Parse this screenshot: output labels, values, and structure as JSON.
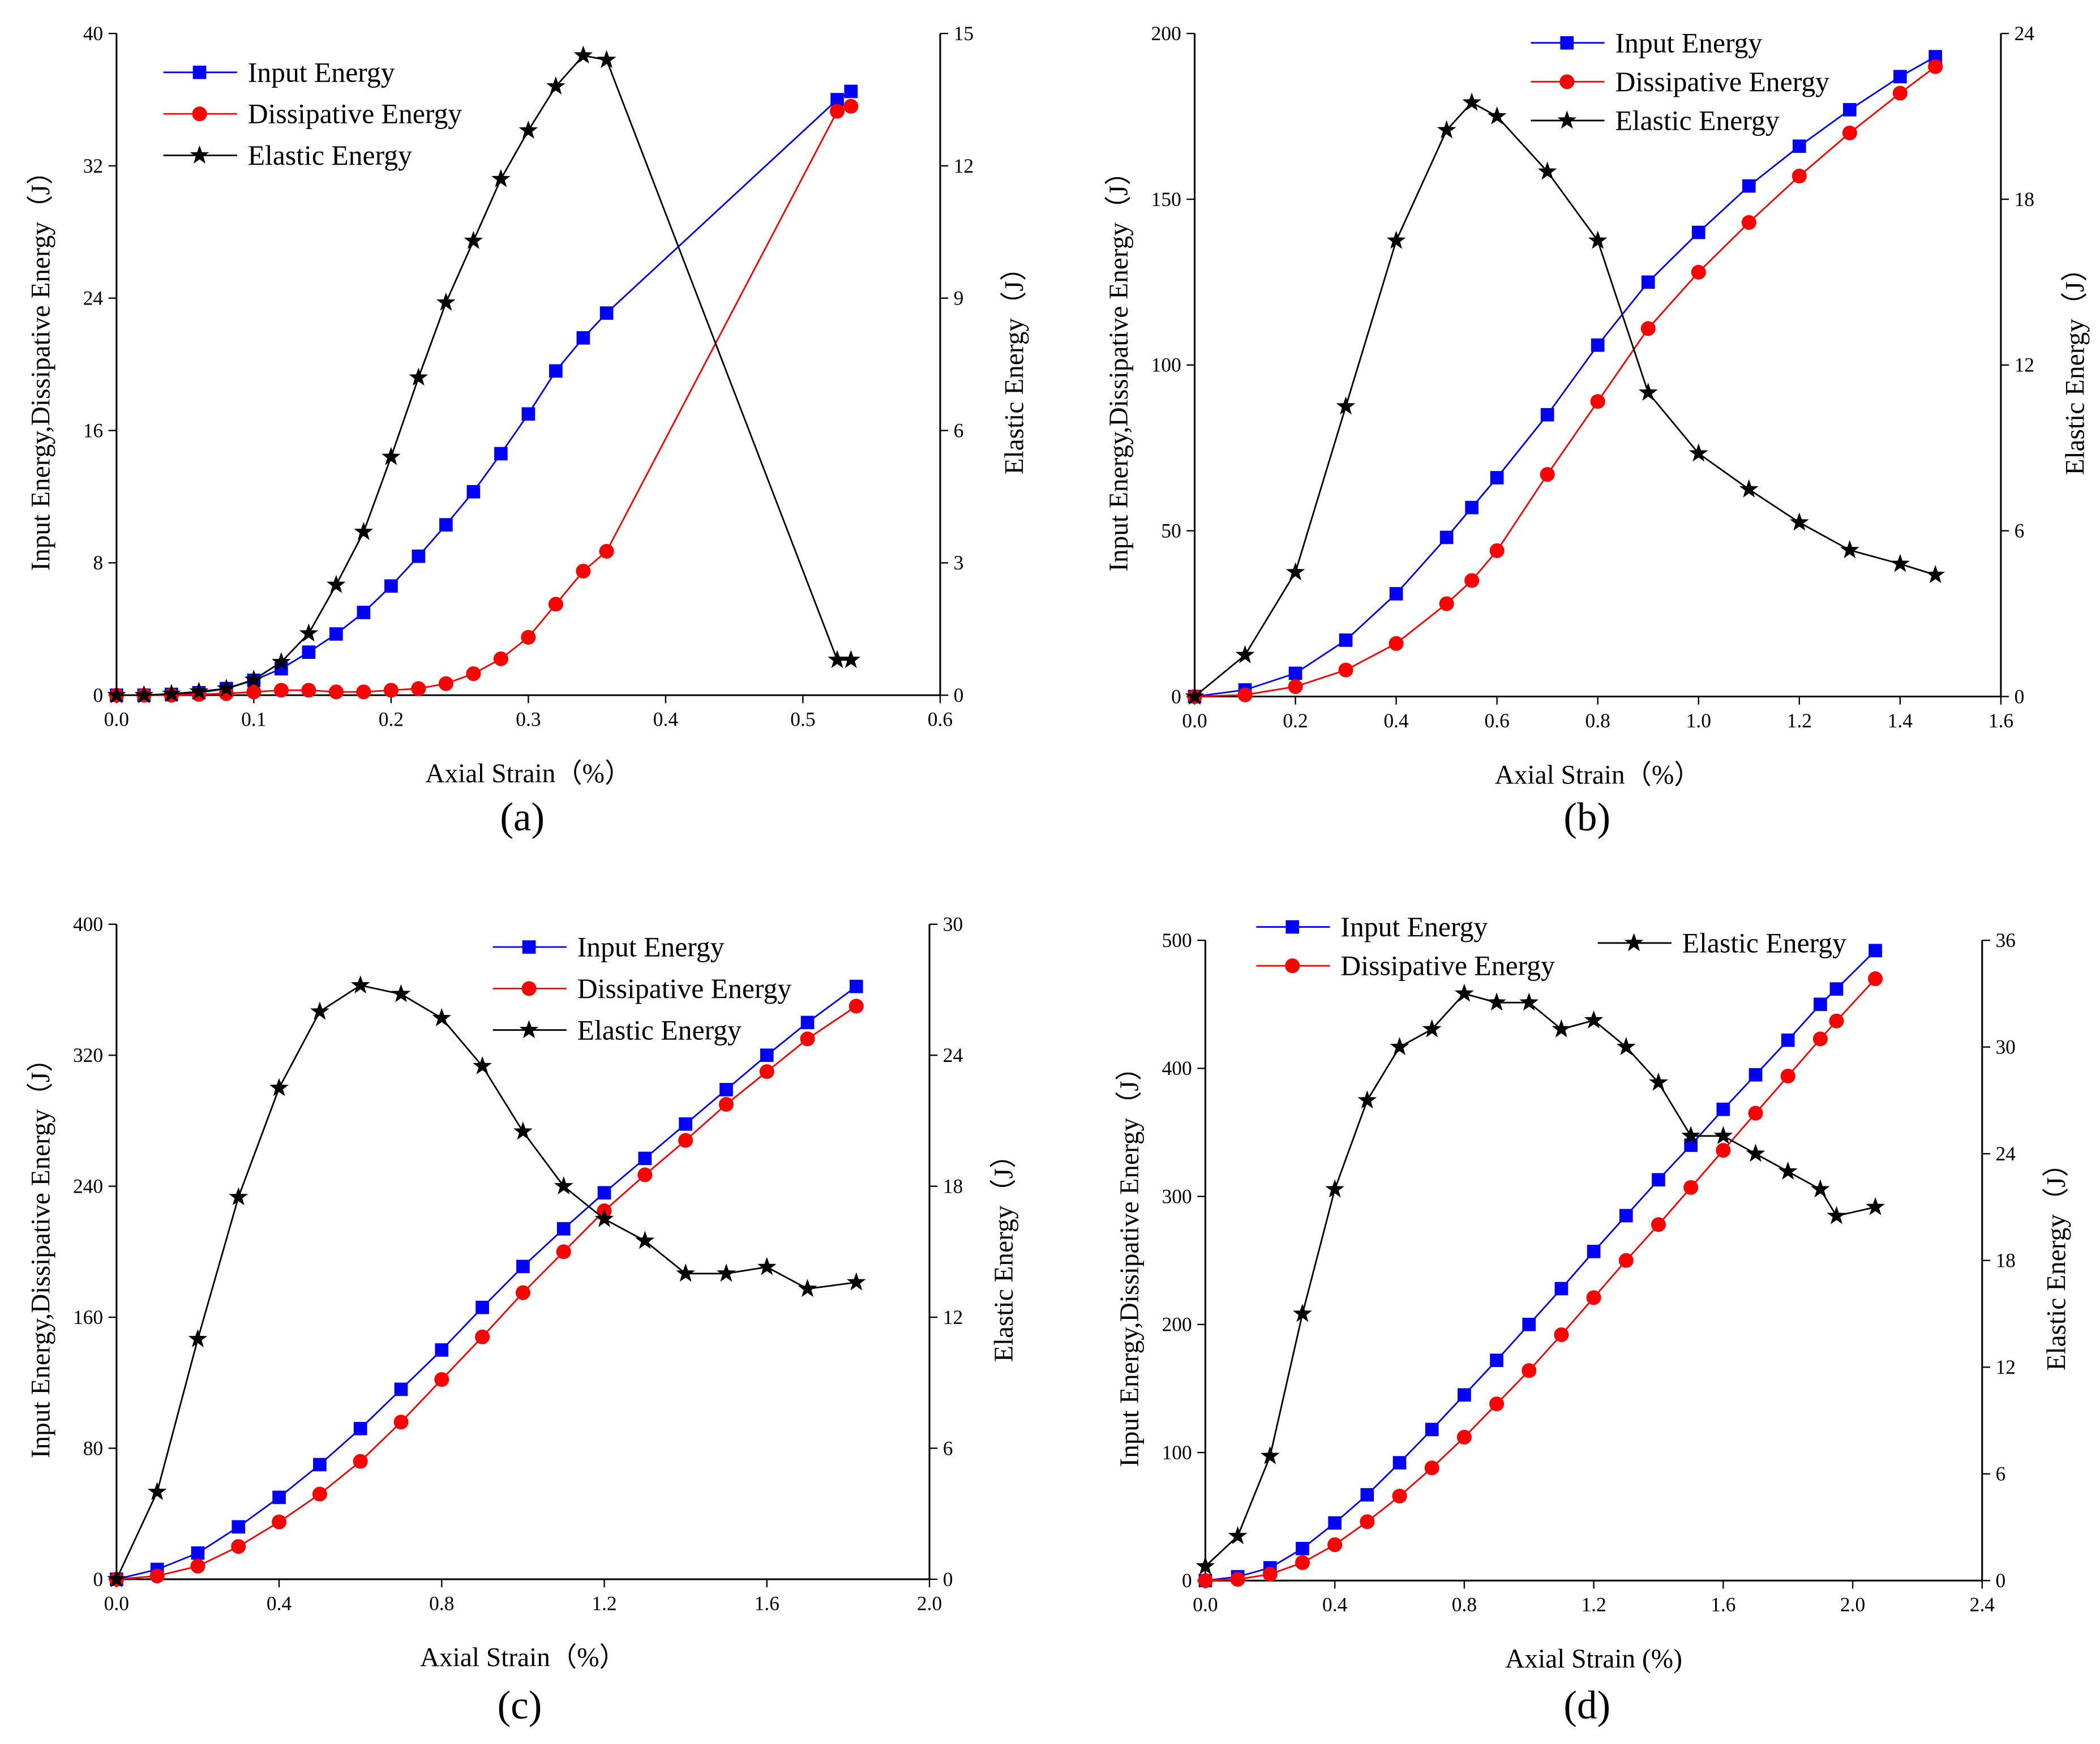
{
  "colors": {
    "input": "#0000ff",
    "dissipative": "#ff0000",
    "elastic": "#000000"
  },
  "chart_data": [
    {
      "type": "line",
      "panel": "(a)",
      "xlabel": "Axial Strain（%）",
      "ylabel": "Input Energy,Dissipative Energy（J）",
      "y2label": "Elastic Energy（J）",
      "xlim": [
        0,
        0.6
      ],
      "ylim": [
        0,
        40
      ],
      "y2lim": [
        0,
        15
      ],
      "xticks": [
        "0.0",
        "0.1",
        "0.2",
        "0.3",
        "0.4",
        "0.5",
        "0.6"
      ],
      "yticks": [
        "0",
        "8",
        "16",
        "24",
        "32",
        "40"
      ],
      "y2ticks": [
        "0",
        "3",
        "6",
        "9",
        "12",
        "15"
      ],
      "legend_position": "top-left",
      "x": [
        0,
        0.02,
        0.04,
        0.06,
        0.08,
        0.1,
        0.12,
        0.14,
        0.16,
        0.18,
        0.2,
        0.22,
        0.24,
        0.26,
        0.28,
        0.3,
        0.32,
        0.34,
        0.357,
        0.525,
        0.535
      ],
      "series": [
        {
          "name": "Input Energy",
          "axis": "left",
          "values": [
            0,
            0,
            0.05,
            0.15,
            0.4,
            0.9,
            1.6,
            2.6,
            3.7,
            5,
            6.6,
            8.4,
            10.3,
            12.3,
            14.6,
            17,
            19.6,
            21.6,
            23.1,
            36,
            36.5
          ]
        },
        {
          "name": "Dissipative Energy",
          "axis": "left",
          "values": [
            0,
            0,
            0,
            0.05,
            0.1,
            0.2,
            0.3,
            0.3,
            0.2,
            0.2,
            0.3,
            0.4,
            0.7,
            1.3,
            2.2,
            3.5,
            5.5,
            7.5,
            8.7,
            35.3,
            35.6
          ]
        },
        {
          "name": "Elastic Energy",
          "axis": "right",
          "values": [
            0,
            0,
            0.03,
            0.08,
            0.15,
            0.35,
            0.75,
            1.4,
            2.5,
            3.7,
            5.4,
            7.2,
            8.9,
            10.3,
            11.7,
            12.8,
            13.8,
            14.5,
            14.4,
            0.8,
            0.8
          ]
        }
      ]
    },
    {
      "type": "line",
      "panel": "(b)",
      "xlabel": "Axial Strain（%）",
      "ylabel": "Input Energy,Dissipative Energy（J）",
      "y2label": "Elastic Energy（J）",
      "xlim": [
        0,
        1.6
      ],
      "ylim": [
        0,
        200
      ],
      "y2lim": [
        0,
        24
      ],
      "xticks": [
        "0.0",
        "0.2",
        "0.4",
        "0.6",
        "0.8",
        "1.0",
        "1.2",
        "1.4",
        "1.6"
      ],
      "yticks": [
        "0",
        "50",
        "100",
        "150",
        "200"
      ],
      "y2ticks": [
        "0",
        "6",
        "12",
        "18",
        "24"
      ],
      "legend_position": "top-right",
      "x": [
        0,
        0.1,
        0.2,
        0.3,
        0.4,
        0.5,
        0.55,
        0.6,
        0.7,
        0.8,
        0.9,
        1.0,
        1.1,
        1.2,
        1.3,
        1.4,
        1.47
      ],
      "series": [
        {
          "name": "Input Energy",
          "axis": "left",
          "values": [
            0,
            2,
            7,
            17,
            31,
            48,
            57,
            66,
            85,
            106,
            125,
            140,
            154,
            166,
            177,
            187,
            193
          ]
        },
        {
          "name": "Dissipative Energy",
          "axis": "left",
          "values": [
            0,
            0.5,
            3,
            8,
            16,
            28,
            35,
            44,
            67,
            89,
            111,
            128,
            143,
            157,
            170,
            182,
            190
          ]
        },
        {
          "name": "Elastic Energy",
          "axis": "right",
          "values": [
            0,
            1.5,
            4.5,
            10.5,
            16.5,
            20.5,
            21.5,
            21,
            19,
            16.5,
            11,
            8.8,
            7.5,
            6.3,
            5.3,
            4.8,
            4.4
          ]
        }
      ]
    },
    {
      "type": "line",
      "panel": "(c)",
      "xlabel": "Axial Strain（%）",
      "ylabel": "Input Energy,Dissipative Energy（J）",
      "y2label": "Elastic Energy（J）",
      "xlim": [
        0,
        2.0
      ],
      "ylim": [
        0,
        400
      ],
      "y2lim": [
        0,
        30
      ],
      "xticks": [
        "0.0",
        "0.4",
        "0.8",
        "1.2",
        "1.6",
        "2.0"
      ],
      "yticks": [
        "0",
        "80",
        "160",
        "240",
        "320",
        "400"
      ],
      "y2ticks": [
        "0",
        "6",
        "12",
        "18",
        "24",
        "30"
      ],
      "legend_position": "top-right",
      "x": [
        0,
        0.1,
        0.2,
        0.3,
        0.4,
        0.5,
        0.6,
        0.7,
        0.8,
        0.9,
        1.0,
        1.1,
        1.2,
        1.3,
        1.4,
        1.5,
        1.6,
        1.7,
        1.82
      ],
      "series": [
        {
          "name": "Input Energy",
          "axis": "left",
          "values": [
            0,
            6,
            16,
            32,
            50,
            70,
            92,
            116,
            140,
            166,
            191,
            214,
            236,
            257,
            278,
            299,
            320,
            340,
            362
          ]
        },
        {
          "name": "Dissipative Energy",
          "axis": "left",
          "values": [
            0,
            2,
            8,
            20,
            35,
            52,
            72,
            96,
            122,
            148,
            175,
            200,
            225,
            247,
            268,
            290,
            310,
            330,
            350
          ]
        },
        {
          "name": "Elastic Energy",
          "axis": "right",
          "values": [
            0,
            4,
            11,
            17.5,
            22.5,
            26,
            27.2,
            26.8,
            25.7,
            23.5,
            20.5,
            18,
            16.5,
            15.5,
            14,
            14,
            14.3,
            13.3,
            13.6
          ]
        }
      ]
    },
    {
      "type": "line",
      "panel": "(d)",
      "xlabel": "Axial Strain (%)",
      "ylabel": "Input Energy,Dissipative Energy（J）",
      "y2label": "Elastic Energy（J）",
      "xlim": [
        0,
        2.4
      ],
      "ylim": [
        0,
        500
      ],
      "y2lim": [
        0,
        36
      ],
      "xticks": [
        "0.0",
        "0.4",
        "0.8",
        "1.2",
        "1.6",
        "2.0",
        "2.4"
      ],
      "yticks": [
        "0",
        "100",
        "200",
        "300",
        "400",
        "500"
      ],
      "y2ticks": [
        "0",
        "6",
        "12",
        "18",
        "24",
        "30",
        "36"
      ],
      "legend_position": "top",
      "x": [
        0,
        0.1,
        0.2,
        0.3,
        0.4,
        0.5,
        0.6,
        0.7,
        0.8,
        0.9,
        1.0,
        1.1,
        1.2,
        1.3,
        1.4,
        1.5,
        1.6,
        1.7,
        1.8,
        1.9,
        1.95,
        2.07
      ],
      "series": [
        {
          "name": "Input Energy",
          "axis": "left",
          "values": [
            0,
            3,
            10,
            25,
            45,
            67,
            92,
            118,
            145,
            172,
            200,
            228,
            257,
            285,
            313,
            340,
            368,
            395,
            422,
            450,
            462,
            492
          ]
        },
        {
          "name": "Dissipative Energy",
          "axis": "left",
          "values": [
            0,
            1,
            5,
            14,
            28,
            46,
            66,
            88,
            112,
            138,
            164,
            192,
            221,
            250,
            278,
            307,
            336,
            365,
            394,
            423,
            437,
            470
          ]
        },
        {
          "name": "Elastic Energy",
          "axis": "right",
          "values": [
            0.8,
            2.5,
            7,
            15,
            22,
            27,
            30,
            31,
            33,
            32.5,
            32.5,
            31,
            31.5,
            30,
            28,
            25,
            25,
            24,
            23,
            22,
            20.5,
            21
          ]
        }
      ]
    }
  ]
}
